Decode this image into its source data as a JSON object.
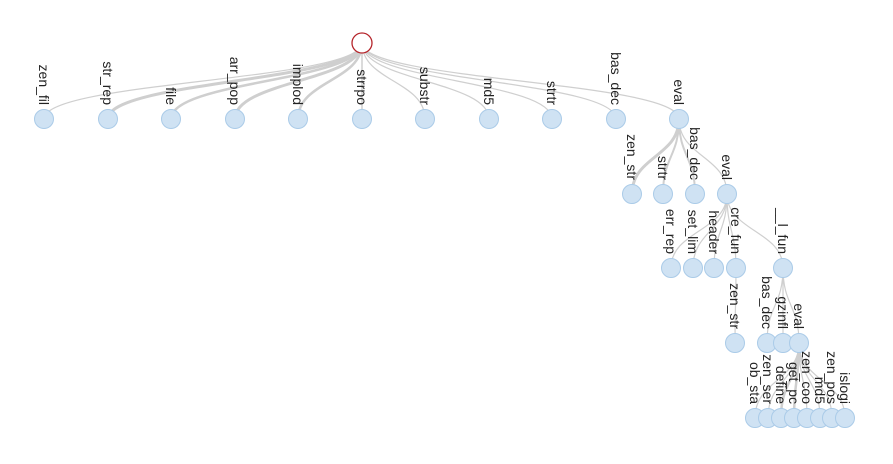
{
  "tree": {
    "name": "",
    "children": [
      {
        "name": "zen_fil"
      },
      {
        "name": "str_rep"
      },
      {
        "name": "file"
      },
      {
        "name": "arr_pop"
      },
      {
        "name": "implod"
      },
      {
        "name": "strrpo"
      },
      {
        "name": "substr"
      },
      {
        "name": "md5"
      },
      {
        "name": "strtr"
      },
      {
        "name": "bas_dec"
      },
      {
        "name": "eval",
        "children": [
          {
            "name": "zen_str"
          },
          {
            "name": "strtr"
          },
          {
            "name": "bas_dec"
          },
          {
            "name": "eval",
            "children": [
              {
                "name": "err_rep"
              },
              {
                "name": "set_lim"
              },
              {
                "name": "header"
              },
              {
                "name": "cre_fun",
                "children": [
                  {
                    "name": "zen_str"
                  }
                ]
              },
              {
                "name": "__l_fun",
                "children": [
                  {
                    "name": "bas_dec"
                  },
                  {
                    "name": "gzinfl"
                  },
                  {
                    "name": "eval",
                    "children": [
                      {
                        "name": "ob_sta"
                      },
                      {
                        "name": "zen_ser"
                      },
                      {
                        "name": "define"
                      },
                      {
                        "name": "get_pc"
                      },
                      {
                        "name": "zen_coo"
                      },
                      {
                        "name": "md5"
                      },
                      {
                        "name": "zen_pos"
                      },
                      {
                        "name": "islogi"
                      }
                    ]
                  }
                ]
              }
            ]
          }
        ]
      }
    ]
  }
}
